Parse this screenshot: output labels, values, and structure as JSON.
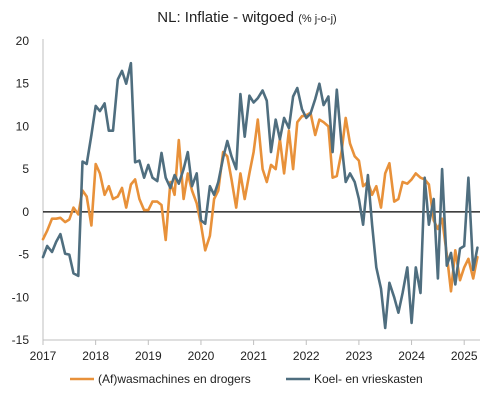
{
  "chart_data": {
    "type": "line",
    "title": "NL: Inflatie - witgoed",
    "subtitle": "(% j-o-j)",
    "xlabel": "",
    "ylabel": "",
    "xlim": [
      2017.0,
      2025.3
    ],
    "ylim": [
      -15,
      20
    ],
    "y_ticks": [
      20,
      15,
      10,
      5,
      0,
      -5,
      -10,
      -15
    ],
    "x_ticks": [
      2017,
      2018,
      2019,
      2020,
      2021,
      2022,
      2023,
      2024,
      2025
    ],
    "zero_line": true,
    "grid": false,
    "legend_position": "bottom",
    "colors": {
      "series1": "#e8913a",
      "series2": "#4f6e7f",
      "zero_line": "#000000",
      "axis": "#bfbfbf"
    },
    "series": [
      {
        "name": "(Af)wasmachines en drogers",
        "points": [
          [
            2017.0,
            -3.2
          ],
          [
            2017.08,
            -2.2
          ],
          [
            2017.17,
            -0.8
          ],
          [
            2017.25,
            -0.8
          ],
          [
            2017.33,
            -0.7
          ],
          [
            2017.42,
            -1.2
          ],
          [
            2017.5,
            -0.9
          ],
          [
            2017.58,
            0.5
          ],
          [
            2017.67,
            -0.3
          ],
          [
            2017.75,
            2.5
          ],
          [
            2017.83,
            1.8
          ],
          [
            2017.92,
            -1.6
          ],
          [
            2018.0,
            5.6
          ],
          [
            2018.08,
            4.5
          ],
          [
            2018.17,
            2.0
          ],
          [
            2018.25,
            3.0
          ],
          [
            2018.33,
            1.5
          ],
          [
            2018.42,
            1.8
          ],
          [
            2018.5,
            2.8
          ],
          [
            2018.58,
            0.5
          ],
          [
            2018.67,
            3.2
          ],
          [
            2018.75,
            3.8
          ],
          [
            2018.83,
            1.5
          ],
          [
            2018.92,
            0.2
          ],
          [
            2019.0,
            0.2
          ],
          [
            2019.08,
            1.2
          ],
          [
            2019.17,
            1.2
          ],
          [
            2019.25,
            0.8
          ],
          [
            2019.33,
            -3.3
          ],
          [
            2019.42,
            3.5
          ],
          [
            2019.5,
            2.0
          ],
          [
            2019.58,
            8.4
          ],
          [
            2019.67,
            1.5
          ],
          [
            2019.75,
            4.5
          ],
          [
            2019.83,
            2.5
          ],
          [
            2019.92,
            1.0
          ],
          [
            2020.0,
            -1.5
          ],
          [
            2020.08,
            -4.5
          ],
          [
            2020.17,
            -2.8
          ],
          [
            2020.25,
            1.5
          ],
          [
            2020.33,
            2.5
          ],
          [
            2020.42,
            7.0
          ],
          [
            2020.5,
            6.5
          ],
          [
            2020.58,
            3.8
          ],
          [
            2020.67,
            0.5
          ],
          [
            2020.75,
            4.5
          ],
          [
            2020.83,
            1.5
          ],
          [
            2020.92,
            4.5
          ],
          [
            2021.0,
            7.0
          ],
          [
            2021.08,
            10.8
          ],
          [
            2021.17,
            5.0
          ],
          [
            2021.25,
            3.5
          ],
          [
            2021.33,
            5.5
          ],
          [
            2021.42,
            5.0
          ],
          [
            2021.5,
            8.5
          ],
          [
            2021.58,
            4.5
          ],
          [
            2021.67,
            9.5
          ],
          [
            2021.75,
            5.0
          ],
          [
            2021.83,
            10.5
          ],
          [
            2021.92,
            11.2
          ],
          [
            2022.0,
            11.3
          ],
          [
            2022.08,
            11.6
          ],
          [
            2022.17,
            9.0
          ],
          [
            2022.25,
            10.8
          ],
          [
            2022.33,
            10.5
          ],
          [
            2022.42,
            10.0
          ],
          [
            2022.5,
            4.0
          ],
          [
            2022.58,
            4.2
          ],
          [
            2022.67,
            7.0
          ],
          [
            2022.75,
            11.0
          ],
          [
            2022.83,
            8.0
          ],
          [
            2022.92,
            6.5
          ],
          [
            2023.0,
            6.0
          ],
          [
            2023.08,
            3.0
          ],
          [
            2023.17,
            3.5
          ],
          [
            2023.25,
            2.0
          ],
          [
            2023.33,
            3.0
          ],
          [
            2023.42,
            0.5
          ],
          [
            2023.5,
            4.5
          ],
          [
            2023.58,
            5.7
          ],
          [
            2023.67,
            1.2
          ],
          [
            2023.75,
            1.5
          ],
          [
            2023.83,
            3.5
          ],
          [
            2023.92,
            3.3
          ],
          [
            2024.0,
            3.8
          ],
          [
            2024.08,
            4.5
          ],
          [
            2024.17,
            4.0
          ],
          [
            2024.25,
            3.8
          ],
          [
            2024.33,
            3.2
          ],
          [
            2024.42,
            -1.0
          ],
          [
            2024.5,
            -2.0
          ],
          [
            2024.58,
            -0.8
          ],
          [
            2024.67,
            -5.0
          ],
          [
            2024.75,
            -9.3
          ],
          [
            2024.83,
            -4.5
          ],
          [
            2024.92,
            -8.0
          ],
          [
            2025.0,
            -6.5
          ],
          [
            2025.08,
            -5.5
          ],
          [
            2025.17,
            -7.8
          ],
          [
            2025.25,
            -5.3
          ]
        ]
      },
      {
        "name": "Koel- en vrieskasten",
        "points": [
          [
            2017.0,
            -5.3
          ],
          [
            2017.08,
            -4.0
          ],
          [
            2017.17,
            -4.7
          ],
          [
            2017.25,
            -3.5
          ],
          [
            2017.33,
            -2.6
          ],
          [
            2017.42,
            -4.9
          ],
          [
            2017.5,
            -5.0
          ],
          [
            2017.58,
            -7.2
          ],
          [
            2017.67,
            -7.5
          ],
          [
            2017.75,
            5.9
          ],
          [
            2017.83,
            5.6
          ],
          [
            2017.92,
            9.0
          ],
          [
            2018.0,
            12.4
          ],
          [
            2018.08,
            11.8
          ],
          [
            2018.17,
            12.7
          ],
          [
            2018.25,
            9.5
          ],
          [
            2018.33,
            9.5
          ],
          [
            2018.42,
            15.5
          ],
          [
            2018.5,
            16.5
          ],
          [
            2018.58,
            15.0
          ],
          [
            2018.67,
            17.4
          ],
          [
            2018.75,
            5.8
          ],
          [
            2018.83,
            6.0
          ],
          [
            2018.92,
            4.0
          ],
          [
            2019.0,
            5.5
          ],
          [
            2019.08,
            4.0
          ],
          [
            2019.17,
            3.6
          ],
          [
            2019.25,
            6.9
          ],
          [
            2019.33,
            4.0
          ],
          [
            2019.42,
            2.8
          ],
          [
            2019.5,
            4.3
          ],
          [
            2019.58,
            3.3
          ],
          [
            2019.67,
            5.0
          ],
          [
            2019.75,
            7.0
          ],
          [
            2019.83,
            3.0
          ],
          [
            2019.92,
            4.5
          ],
          [
            2020.0,
            -1.0
          ],
          [
            2020.08,
            -1.4
          ],
          [
            2020.17,
            3.0
          ],
          [
            2020.25,
            2.0
          ],
          [
            2020.33,
            3.5
          ],
          [
            2020.42,
            6.3
          ],
          [
            2020.5,
            8.3
          ],
          [
            2020.58,
            6.5
          ],
          [
            2020.67,
            5.0
          ],
          [
            2020.75,
            13.8
          ],
          [
            2020.83,
            8.8
          ],
          [
            2020.92,
            13.6
          ],
          [
            2021.0,
            12.8
          ],
          [
            2021.08,
            13.3
          ],
          [
            2021.17,
            14.2
          ],
          [
            2021.25,
            13.0
          ],
          [
            2021.33,
            7.0
          ],
          [
            2021.42,
            10.8
          ],
          [
            2021.5,
            8.5
          ],
          [
            2021.58,
            11.0
          ],
          [
            2021.67,
            9.8
          ],
          [
            2021.75,
            13.5
          ],
          [
            2021.83,
            14.5
          ],
          [
            2021.92,
            12.0
          ],
          [
            2022.0,
            11.0
          ],
          [
            2022.08,
            11.5
          ],
          [
            2022.17,
            13.2
          ],
          [
            2022.25,
            15.0
          ],
          [
            2022.33,
            12.5
          ],
          [
            2022.42,
            13.5
          ],
          [
            2022.5,
            7.0
          ],
          [
            2022.58,
            14.3
          ],
          [
            2022.67,
            8.0
          ],
          [
            2022.75,
            3.5
          ],
          [
            2022.83,
            4.5
          ],
          [
            2022.92,
            3.5
          ],
          [
            2023.0,
            1.5
          ],
          [
            2023.08,
            -1.5
          ],
          [
            2023.17,
            4.3
          ],
          [
            2023.25,
            -1.5
          ],
          [
            2023.33,
            -6.5
          ],
          [
            2023.42,
            -9.0
          ],
          [
            2023.5,
            -13.6
          ],
          [
            2023.58,
            -8.3
          ],
          [
            2023.67,
            -10.0
          ],
          [
            2023.75,
            -11.8
          ],
          [
            2023.83,
            -9.5
          ],
          [
            2023.92,
            -6.5
          ],
          [
            2024.0,
            -13.0
          ],
          [
            2024.08,
            -6.5
          ],
          [
            2024.17,
            -9.5
          ],
          [
            2024.25,
            4.0
          ],
          [
            2024.33,
            -1.5
          ],
          [
            2024.42,
            1.5
          ],
          [
            2024.5,
            -7.8
          ],
          [
            2024.58,
            5.0
          ],
          [
            2024.67,
            -6.3
          ],
          [
            2024.75,
            -4.8
          ],
          [
            2024.83,
            -8.5
          ],
          [
            2024.92,
            -4.3
          ],
          [
            2025.0,
            -4.0
          ],
          [
            2025.08,
            4.0
          ],
          [
            2025.17,
            -6.8
          ],
          [
            2025.25,
            -4.2
          ]
        ]
      }
    ]
  }
}
